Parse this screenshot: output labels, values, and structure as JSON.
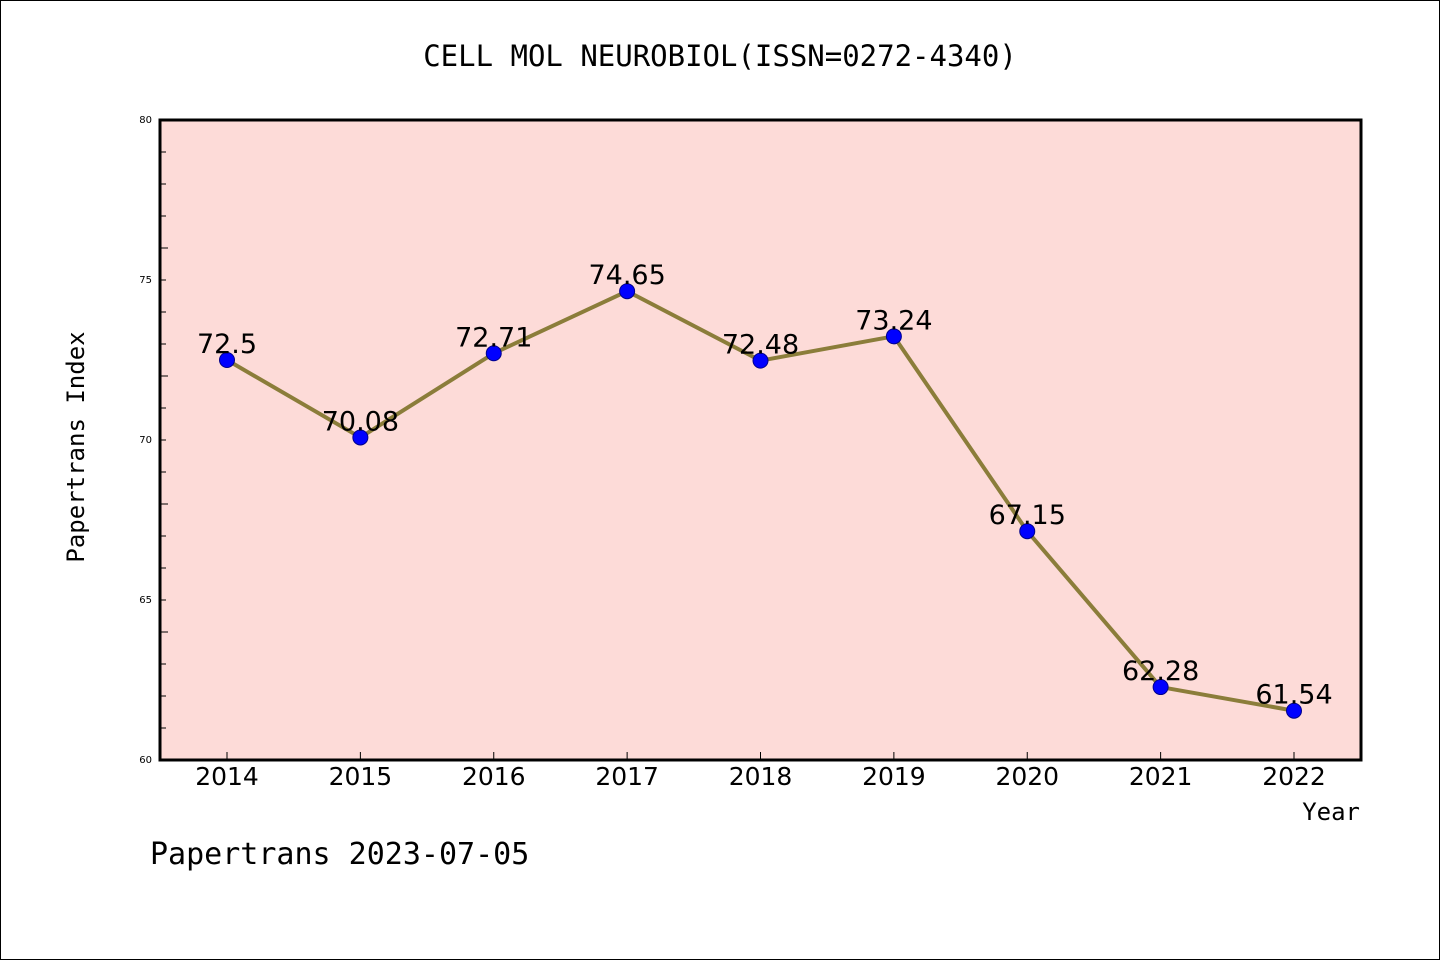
{
  "chart_data": {
    "type": "line",
    "title": "CELL MOL NEUROBIOL(ISSN=0272-4340)",
    "xlabel": "Year",
    "ylabel": "Papertrans Index",
    "categories": [
      "2014",
      "2015",
      "2016",
      "2017",
      "2018",
      "2019",
      "2020",
      "2021",
      "2022"
    ],
    "values": [
      72.5,
      70.08,
      72.71,
      74.65,
      72.48,
      73.24,
      67.15,
      62.28,
      61.54
    ],
    "data_labels": [
      "72.5",
      "70.08",
      "72.71",
      "74.65",
      "72.48",
      "73.24",
      "67.15",
      "62.28",
      "61.54"
    ],
    "ylim": [
      60,
      80
    ],
    "y_ticks": [
      "60",
      "65",
      "70",
      "75",
      "80"
    ],
    "grid": false,
    "colors": {
      "plot_background": "#fddbd8",
      "line": "#8b7d3a",
      "marker": "#0000ff",
      "marker_edge": "#00008b"
    }
  },
  "footer": {
    "text": "Papertrans 2023-07-05"
  }
}
